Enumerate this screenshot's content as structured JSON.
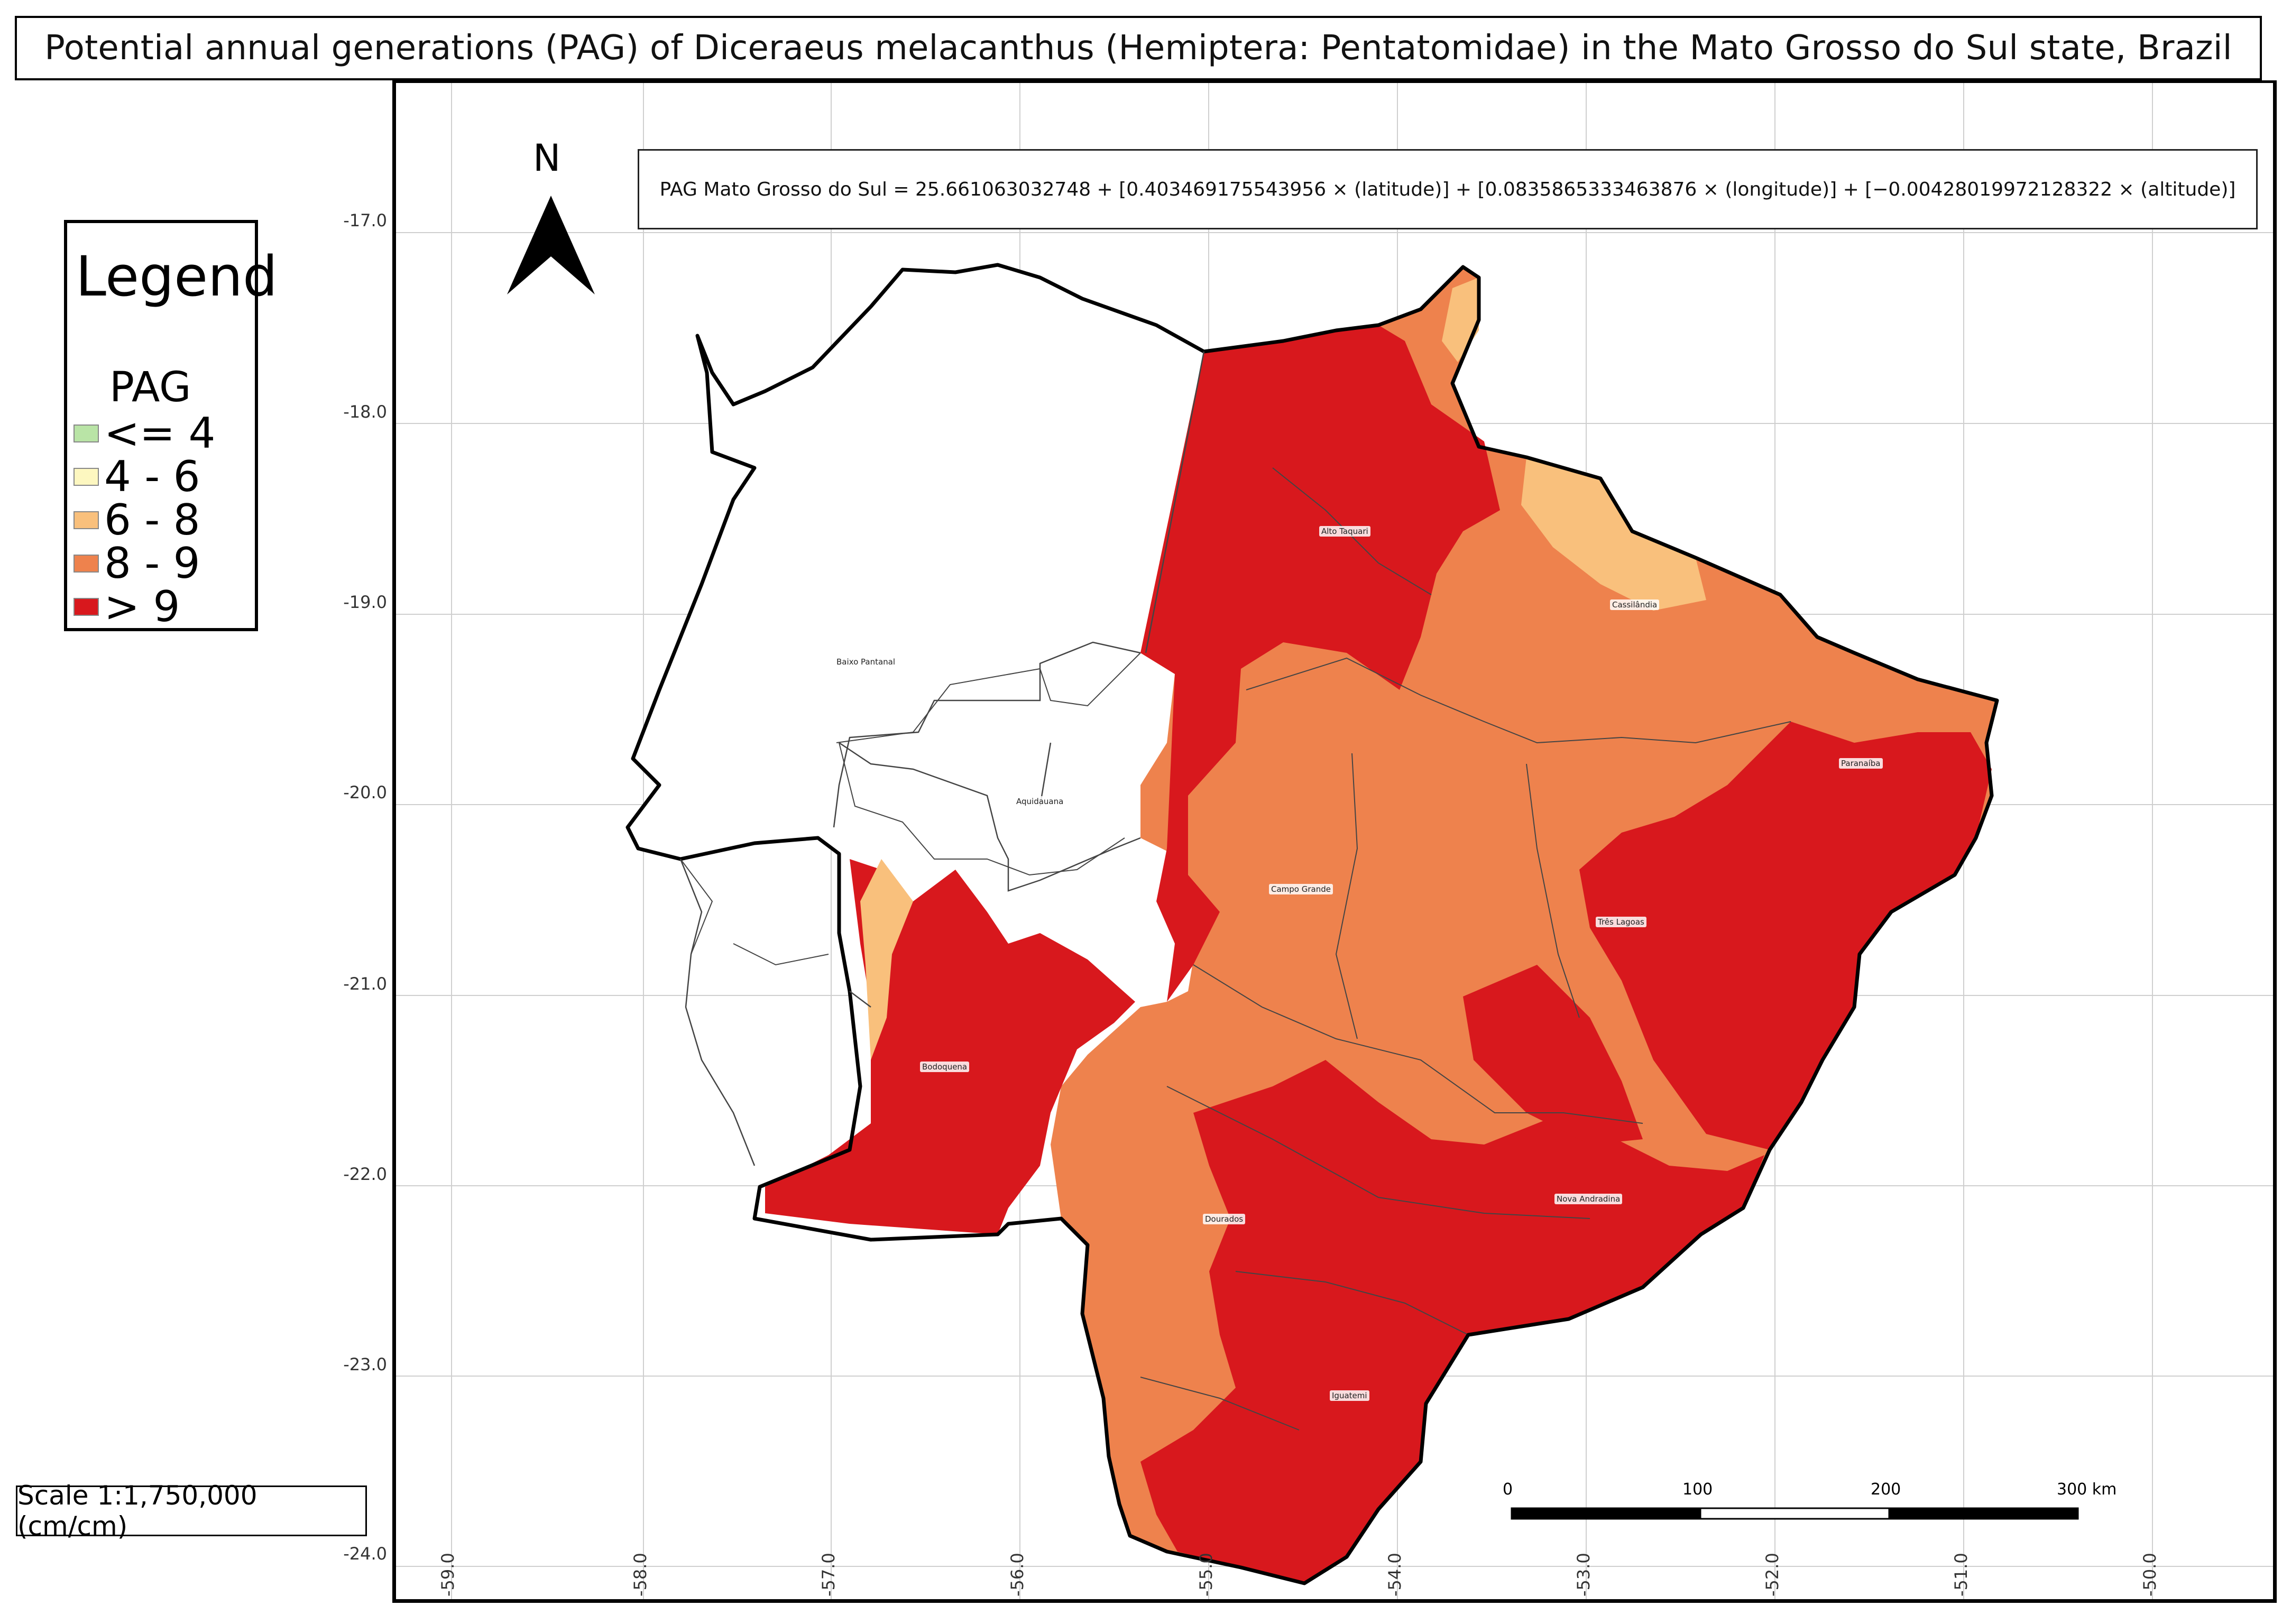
{
  "title": "Potential annual generations (PAG) of Diceraeus melacanthus (Hemiptera: Pentatomidae) in the Mato Grosso do Sul state, Brazil",
  "legend": {
    "title": "Legend",
    "subtitle": "PAG",
    "items": [
      {
        "label": "<= 4",
        "color": "#b9e4a6"
      },
      {
        "label": "4 - 6",
        "color": "#fdf7c0"
      },
      {
        "label": "6 - 8",
        "color": "#f9c07c"
      },
      {
        "label": "8 - 9",
        "color": "#ee824d"
      },
      {
        "label": "> 9",
        "color": "#d8181d"
      }
    ]
  },
  "scale_text": "Scale 1:1,750,000 (cm/cm)",
  "formula": "PAG Mato Grosso do Sul = 25.661063032748 + [0.403469175543956 × (latitude)] + [0.0835865333463876 × (longitude)] + [−0.00428019972128322 × (altitude)]",
  "north": "N",
  "lat_ticks": [
    "-17.0",
    "-18.0",
    "-19.0",
    "-20.0",
    "-21.0",
    "-22.0",
    "-23.0",
    "-24.0"
  ],
  "lon_ticks": [
    "-59.0",
    "-58.0",
    "-57.0",
    "-56.0",
    "-55.0",
    "-54.0",
    "-53.0",
    "-52.0",
    "-51.0",
    "-50.0"
  ],
  "scalebar": {
    "labels": [
      "0",
      "100",
      "200",
      "300 km"
    ]
  },
  "towns": [
    "Alto Taquari",
    "Cassilândia",
    "Baixo Pantanal",
    "Paranaíba",
    "Aquidauana",
    "Campo Grande",
    "Três Lagoas",
    "Bodoquena",
    "Nova Andradina",
    "Dourados",
    "Iguatemi"
  ]
}
